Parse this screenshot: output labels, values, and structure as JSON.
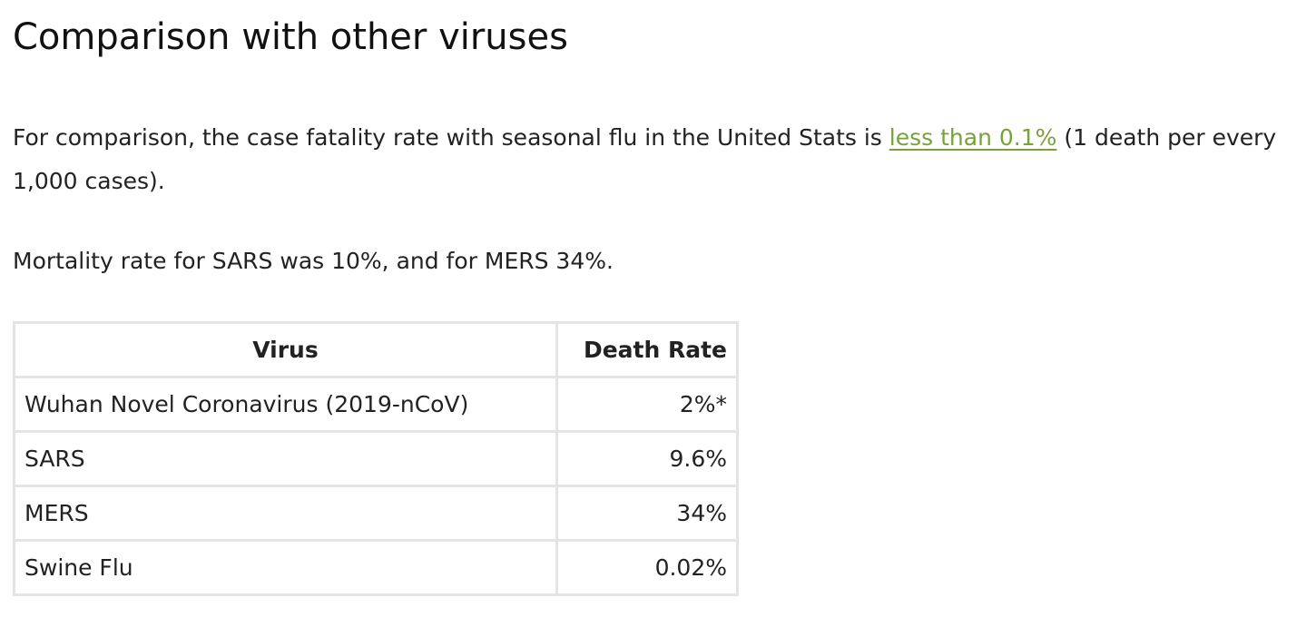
{
  "section": {
    "title": "Comparison with other viruses"
  },
  "paragraph1": {
    "before": "For comparison, the case fatality rate with seasonal flu in the United Stats is ",
    "link_text": "less than 0.1%",
    "after": " (1 death per every 1,000 cases)."
  },
  "paragraph2": {
    "text": "Mortality rate for SARS was 10%, and for MERS 34%."
  },
  "table": {
    "headers": {
      "virus": "Virus",
      "death_rate": "Death Rate"
    },
    "rows": [
      {
        "virus": "Wuhan Novel Coronavirus (2019-nCoV)",
        "rate": "2%*"
      },
      {
        "virus": "SARS",
        "rate": "9.6%"
      },
      {
        "virus": "MERS",
        "rate": "34%"
      },
      {
        "virus": "Swine Flu",
        "rate": "0.02%"
      }
    ]
  },
  "colors": {
    "link": "#79a13a",
    "table_border": "#e4e4e4",
    "text": "#222222"
  }
}
